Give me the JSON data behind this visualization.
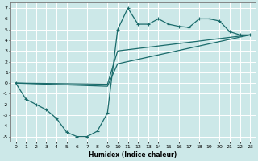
{
  "xlabel": "Humidex (Indice chaleur)",
  "bg_color": "#cce8e8",
  "grid_color": "#ffffff",
  "line_color": "#1a6b6b",
  "xlim": [
    -0.5,
    23.5
  ],
  "ylim": [
    -5.5,
    7.5
  ],
  "xticks": [
    0,
    1,
    2,
    3,
    4,
    5,
    6,
    7,
    8,
    9,
    10,
    11,
    12,
    13,
    14,
    15,
    16,
    17,
    18,
    19,
    20,
    21,
    22,
    23
  ],
  "yticks": [
    -5,
    -4,
    -3,
    -2,
    -1,
    0,
    1,
    2,
    3,
    4,
    5,
    6,
    7
  ],
  "line1_x": [
    0,
    1,
    2,
    3,
    4,
    5,
    6,
    7,
    8,
    9,
    10,
    11,
    12,
    13,
    14,
    15,
    16,
    17,
    18,
    19,
    20,
    21,
    22,
    23
  ],
  "line1_y": [
    0,
    -1.5,
    -2.0,
    -2.5,
    -3.3,
    -4.6,
    -5.0,
    -5.0,
    -4.5,
    -2.8,
    5.0,
    7.0,
    5.5,
    5.5,
    6.0,
    5.5,
    5.3,
    5.2,
    6.0,
    6.0,
    5.8,
    4.8,
    4.5,
    4.5
  ],
  "line2_x": [
    0,
    9,
    10,
    23
  ],
  "line2_y": [
    0,
    -0.3,
    1.8,
    4.5
  ],
  "line3_x": [
    0,
    9,
    10,
    23
  ],
  "line3_y": [
    0,
    -0.1,
    3.0,
    4.5
  ]
}
